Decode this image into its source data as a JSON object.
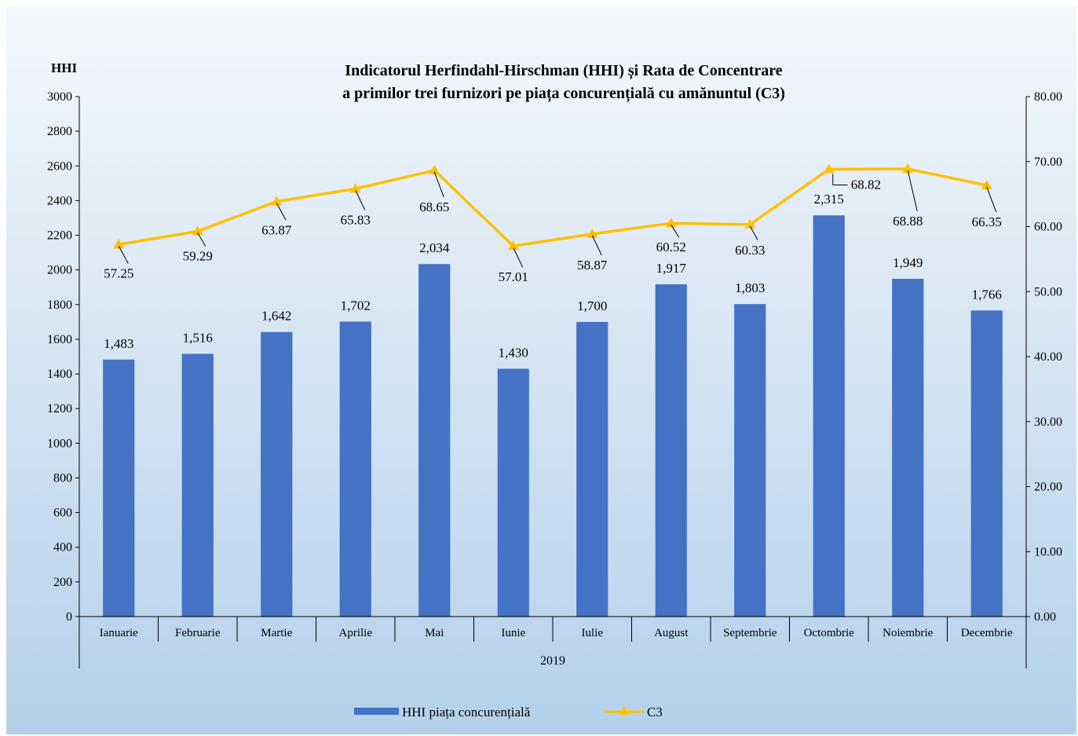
{
  "chart_data": {
    "type": "bar",
    "title_line1": "Indicatorul Herfindahl-Hirschman (HHI) și Rata de Concentrare",
    "title_line2": "a primilor trei furnizori pe piața concurențială cu amănuntul (C3)",
    "ylabel_left": "HHI",
    "group_label": "2019",
    "categories": [
      "Ianuarie",
      "Februarie",
      "Martie",
      "Aprilie",
      "Mai",
      "Iunie",
      "Iulie",
      "August",
      "Septembrie",
      "Octombrie",
      "Noiembrie",
      "Decembrie"
    ],
    "series": [
      {
        "name": "HHI piața concurențială",
        "type": "bar",
        "axis": "left",
        "color": "#4472C4",
        "values": [
          1483,
          1516,
          1642,
          1702,
          2034,
          1430,
          1700,
          1917,
          1803,
          2315,
          1949,
          1766
        ],
        "labels": [
          "1,483",
          "1,516",
          "1,642",
          "1,702",
          "2,034",
          "1,430",
          "1,700",
          "1,917",
          "1,803",
          "2,315",
          "1,949",
          "1,766"
        ]
      },
      {
        "name": "C3",
        "type": "line",
        "axis": "right",
        "color": "#FFC000",
        "values": [
          57.25,
          59.29,
          63.87,
          65.83,
          68.65,
          57.01,
          58.87,
          60.52,
          60.33,
          68.82,
          68.88,
          66.35
        ],
        "labels": [
          "57.25",
          "59.29",
          "63.87",
          "65.83",
          "68.65",
          "57.01",
          "58.87",
          "60.52",
          "60.33",
          "68.82",
          "68.88",
          "66.35"
        ]
      }
    ],
    "ylim_left": [
      0,
      3000
    ],
    "yticks_left": [
      "0",
      "200",
      "400",
      "600",
      "800",
      "1000",
      "1200",
      "1400",
      "1600",
      "1800",
      "2000",
      "2200",
      "2400",
      "2600",
      "2800",
      "3000"
    ],
    "ylim_right": [
      0,
      80
    ],
    "yticks_right": [
      "0.00",
      "10.00",
      "20.00",
      "30.00",
      "40.00",
      "50.00",
      "60.00",
      "70.00",
      "80.00"
    ],
    "grid": false,
    "legend_position": "bottom",
    "background_top": "#F4F8FC",
    "background_bottom": "#B4D0EA"
  }
}
